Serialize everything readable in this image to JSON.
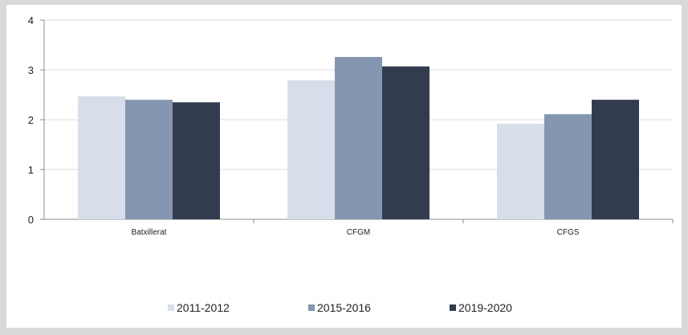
{
  "chart_data": {
    "type": "bar",
    "categories": [
      "Batxillerat",
      "CFGM",
      "CFGS"
    ],
    "series": [
      {
        "name": "2011-2012",
        "values": [
          2.47,
          2.79,
          1.92
        ],
        "color": "#d8dee9"
      },
      {
        "name": "2015-2016",
        "values": [
          2.4,
          3.26,
          2.11
        ],
        "color": "#8496b0"
      },
      {
        "name": "2019-2020",
        "values": [
          2.35,
          3.07,
          2.4
        ],
        "color": "#323c4e"
      }
    ],
    "yticks": [
      "0",
      "1",
      "2",
      "3",
      "4"
    ],
    "ylim": [
      0,
      4
    ],
    "grid": true,
    "legend_position": "bottom",
    "title": "",
    "xlabel": "",
    "ylabel": ""
  }
}
